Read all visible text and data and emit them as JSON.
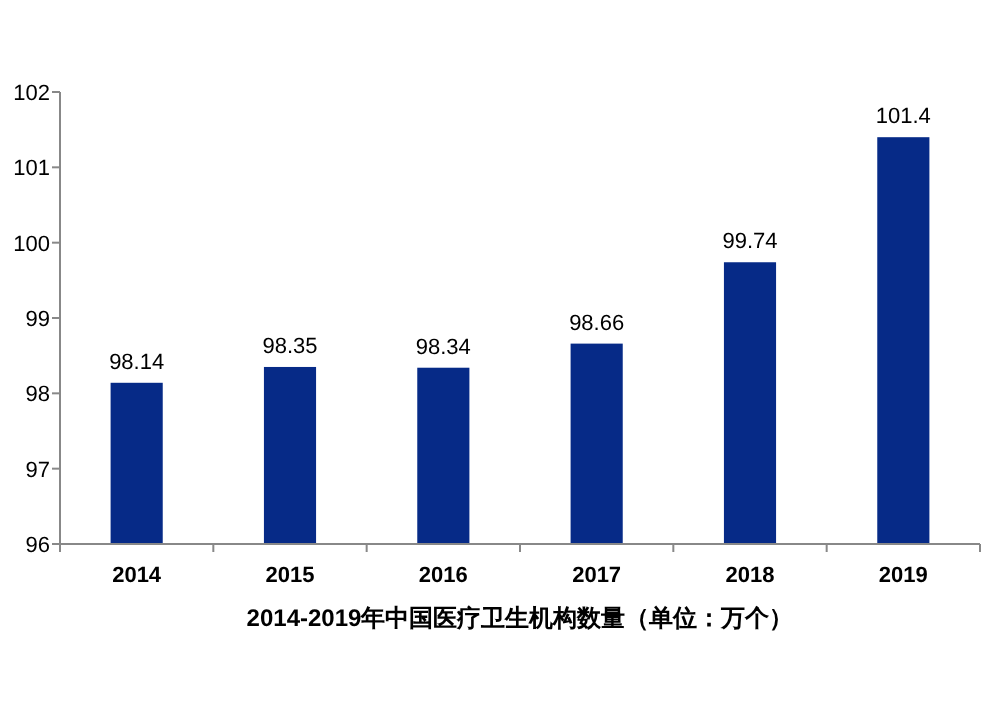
{
  "chart_data": {
    "type": "bar",
    "title": "2014-2019年中国医疗卫生机构数量（单位：万个）",
    "categories": [
      "2014",
      "2015",
      "2016",
      "2017",
      "2018",
      "2019"
    ],
    "values": [
      98.14,
      98.35,
      98.34,
      98.66,
      99.74,
      101.4
    ],
    "color": "#062a87",
    "ylim": [
      96,
      102
    ],
    "yticks": [
      96,
      97,
      98,
      99,
      100,
      101,
      102
    ],
    "data_labels": true,
    "grid": false
  }
}
